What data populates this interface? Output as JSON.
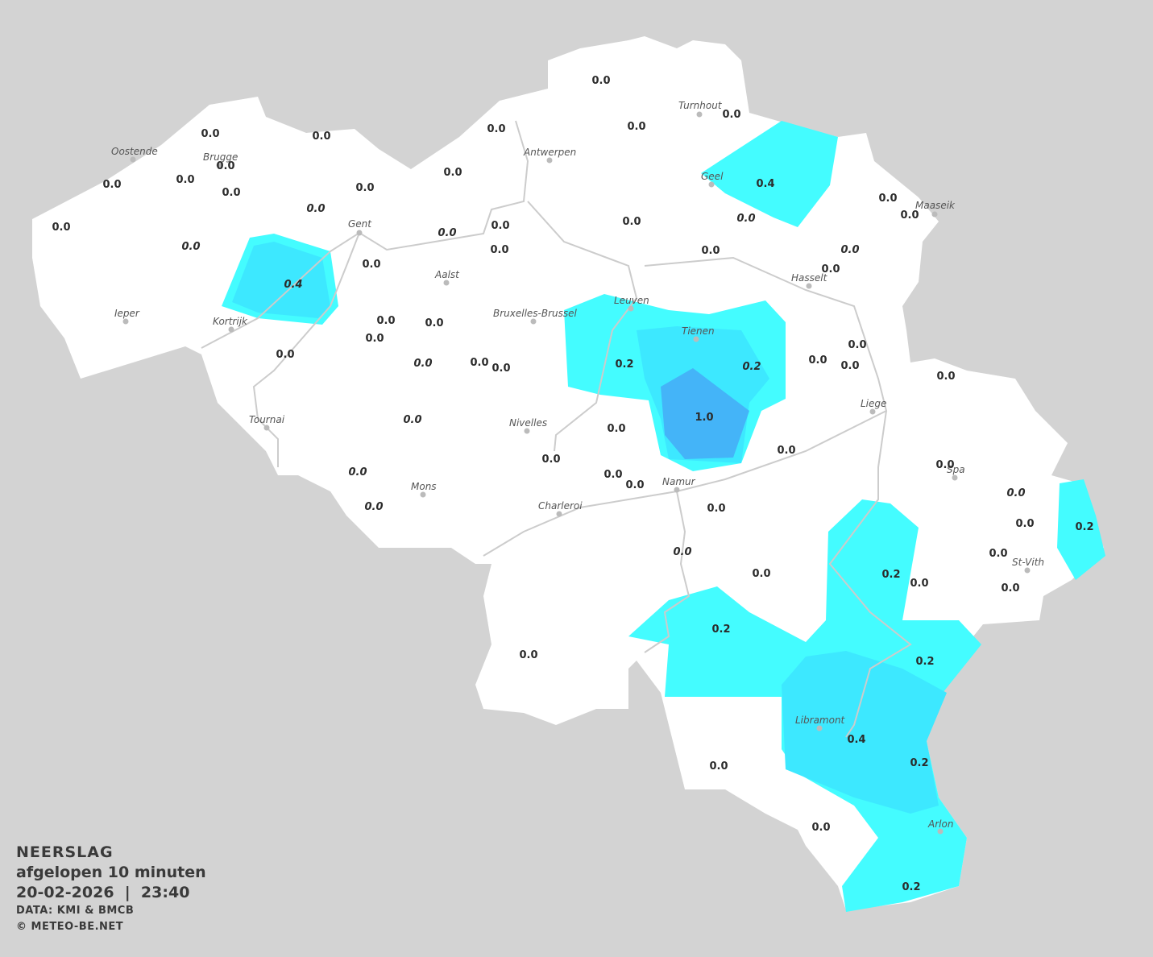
{
  "legend": {
    "title": "NEERSLAG",
    "period": "afgelopen 10 minuten",
    "datetime": "20-02-2026  |  23:40",
    "source": "DATA: KMI & BMCB",
    "copyright": "© METEO-BE.NET"
  },
  "colors": {
    "background": "#d3d3d3",
    "land": "#ffffff",
    "precip_0_2": "#44fcff",
    "precip_0_4": "#3de8ff",
    "precip_1_0": "#44b4f8",
    "river": "#cccccc"
  },
  "cities": [
    "Oostende",
    "Brugge",
    "Gent",
    "Antwerpen",
    "Turnhout",
    "Geel",
    "Maaseik",
    "Hasselt",
    "Aalst",
    "Ieper",
    "Kortrijk",
    "Bruxelles-Brussel",
    "Leuven",
    "Tienen",
    "Liege",
    "Tournai",
    "Nivelles",
    "Mons",
    "Charleroi",
    "Namur",
    "Spa",
    "St-Vith",
    "Libramont",
    "Arlon"
  ],
  "stations": [
    {
      "v": "0.0"
    },
    {
      "v": "0.0"
    },
    {
      "v": "0.0"
    },
    {
      "v": "0.0"
    },
    {
      "v": "0.0"
    },
    {
      "v": "0.0"
    },
    {
      "v": "0.0"
    },
    {
      "v": "0.0"
    },
    {
      "v": "0.0"
    },
    {
      "v": "0.0"
    },
    {
      "v": "0.0"
    },
    {
      "v": "0.0",
      "italic": true
    },
    {
      "v": "0.0",
      "italic": true
    },
    {
      "v": "0.0"
    },
    {
      "v": "0.0"
    },
    {
      "v": "0.4"
    },
    {
      "v": "0.0",
      "italic": true
    },
    {
      "v": "0.0"
    },
    {
      "v": "0.0"
    },
    {
      "v": "0.0",
      "italic": true
    },
    {
      "v": "0.0"
    },
    {
      "v": "0.0"
    },
    {
      "v": "0.4",
      "italic": true
    },
    {
      "v": "0.0"
    },
    {
      "v": "0.0",
      "italic": true
    },
    {
      "v": "0.0"
    },
    {
      "v": "0.0"
    },
    {
      "v": "0.0"
    },
    {
      "v": "0.0"
    },
    {
      "v": "0.0"
    },
    {
      "v": "0.0"
    },
    {
      "v": "0.0"
    },
    {
      "v": "0.0",
      "italic": true
    },
    {
      "v": "0.0"
    },
    {
      "v": "0.0"
    },
    {
      "v": "0.2"
    },
    {
      "v": "0.2",
      "italic": true
    },
    {
      "v": "0.0"
    },
    {
      "v": "0.0"
    },
    {
      "v": "0.0"
    },
    {
      "v": "0.0"
    },
    {
      "v": "1.0"
    },
    {
      "v": "0.0"
    },
    {
      "v": "0.0",
      "italic": true
    },
    {
      "v": "0.0"
    },
    {
      "v": "0.0"
    },
    {
      "v": "0.0"
    },
    {
      "v": "0.0"
    },
    {
      "v": "0.0",
      "italic": true
    },
    {
      "v": "0.0",
      "italic": true
    },
    {
      "v": "0.0"
    },
    {
      "v": "0.0"
    },
    {
      "v": "0.0",
      "italic": true
    },
    {
      "v": "0.0"
    },
    {
      "v": "0.2"
    },
    {
      "v": "0.0"
    },
    {
      "v": "0.0"
    },
    {
      "v": "0.0",
      "italic": true
    },
    {
      "v": "0.0"
    },
    {
      "v": "0.2"
    },
    {
      "v": "0.0"
    },
    {
      "v": "0.2"
    },
    {
      "v": "0.0"
    },
    {
      "v": "0.2"
    },
    {
      "v": "0.4"
    },
    {
      "v": "0.2"
    },
    {
      "v": "0.0"
    },
    {
      "v": "0.0"
    },
    {
      "v": "0.2"
    }
  ]
}
